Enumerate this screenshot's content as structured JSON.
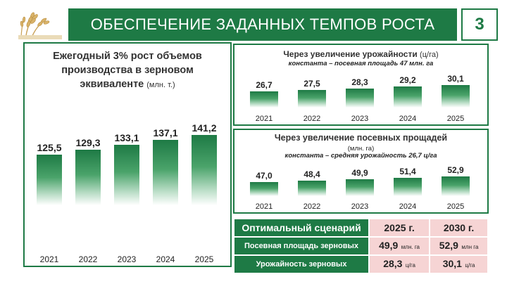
{
  "header": {
    "title": "ОБЕСПЕЧЕНИЕ ЗАДАННЫХ ТЕМПОВ РОСТА",
    "slide_number": "3"
  },
  "logo": {
    "icon": "wheat-ears-icon"
  },
  "colors": {
    "accent": "#1e7a45",
    "table_value_bg": "#f6d4d4"
  },
  "left_panel": {
    "title_line1": "Ежегодный 3% рост объемов",
    "title_line2": "производства в зерновом",
    "title_line3": "эквиваленте",
    "title_unit": "(млн. т.)"
  },
  "top_panel": {
    "title": "Через увеличение урожайности",
    "title_unit": "(ц/га)",
    "subtitle": "константа – посевная площадь 47 млн. га"
  },
  "mid_panel": {
    "title": "Через увеличение посевных прощадей",
    "title_unit": "(млн. га)",
    "subtitle": "константа – средняя урожайность 26,7 ц/га"
  },
  "chart_data": [
    {
      "type": "bar",
      "categories": [
        "2021",
        "2022",
        "2023",
        "2024",
        "2025"
      ],
      "values": [
        125.5,
        129.3,
        133.1,
        137.1,
        141.2
      ],
      "value_labels": [
        "125,5",
        "129,3",
        "133,1",
        "137,1",
        "141,2"
      ],
      "title": "Ежегодный 3% рост объемов производства в зерновом эквиваленте (млн. т.)"
    },
    {
      "type": "bar",
      "categories": [
        "2021",
        "2022",
        "2023",
        "2024",
        "2025"
      ],
      "values": [
        26.7,
        27.5,
        28.3,
        29.2,
        30.1
      ],
      "value_labels": [
        "26,7",
        "27,5",
        "28,3",
        "29,2",
        "30,1"
      ],
      "title": "Через увеличение урожайности (ц/га)"
    },
    {
      "type": "bar",
      "categories": [
        "2021",
        "2022",
        "2023",
        "2024",
        "2025"
      ],
      "values": [
        47.0,
        48.4,
        49.9,
        51.4,
        52.9
      ],
      "value_labels": [
        "47,0",
        "48,4",
        "49,9",
        "51,4",
        "52,9"
      ],
      "title": "Через увеличение посевных прощадей (млн. га)"
    }
  ],
  "table": {
    "header_label": "Оптимальный сценарий",
    "years": [
      "2025 г.",
      "2030 г."
    ],
    "rows": [
      {
        "label": "Посевная площадь зерновых",
        "values": [
          "49,9",
          "52,9"
        ],
        "units": [
          "млн. га",
          "млн га"
        ]
      },
      {
        "label": "Урожайность зерновых",
        "values": [
          "28,3",
          "30,1"
        ],
        "units": [
          "ц/га",
          "ц/га"
        ]
      }
    ]
  }
}
